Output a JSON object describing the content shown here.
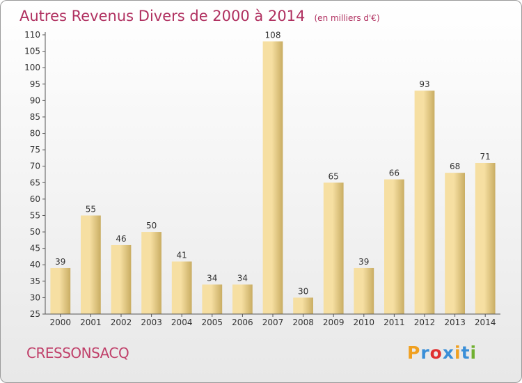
{
  "title": "Autres Revenus Divers de 2000 à 2014",
  "unit_label": "(en milliers d'€)",
  "commune": "CRESSONSACQ",
  "brand": {
    "letters": [
      "P",
      "r",
      "o",
      "x",
      "i",
      "t",
      "i"
    ],
    "colors": [
      "#f0a020",
      "#3a8fd8",
      "#e03030",
      "#3a8fd8",
      "#f0a020",
      "#3a8fd8",
      "#70b030"
    ]
  },
  "colors": {
    "title": "#b03060",
    "bar_light": "#f6dfa2",
    "bar_dark": "#c9ad63",
    "axis": "#555555"
  },
  "chart_data": {
    "type": "bar",
    "title": "Autres Revenus Divers de 2000 à 2014",
    "xlabel": "",
    "ylabel": "",
    "categories": [
      "2000",
      "2001",
      "2002",
      "2003",
      "2004",
      "2005",
      "2006",
      "2007",
      "2008",
      "2009",
      "2010",
      "2011",
      "2012",
      "2013",
      "2014"
    ],
    "values": [
      39,
      55,
      46,
      50,
      41,
      34,
      34,
      108,
      30,
      65,
      39,
      66,
      93,
      68,
      71
    ],
    "ylim": [
      25,
      110
    ],
    "yticks": [
      25,
      30,
      35,
      40,
      45,
      50,
      55,
      60,
      65,
      70,
      75,
      80,
      85,
      90,
      95,
      100,
      105,
      110
    ],
    "grid": false,
    "data_labels": true
  }
}
